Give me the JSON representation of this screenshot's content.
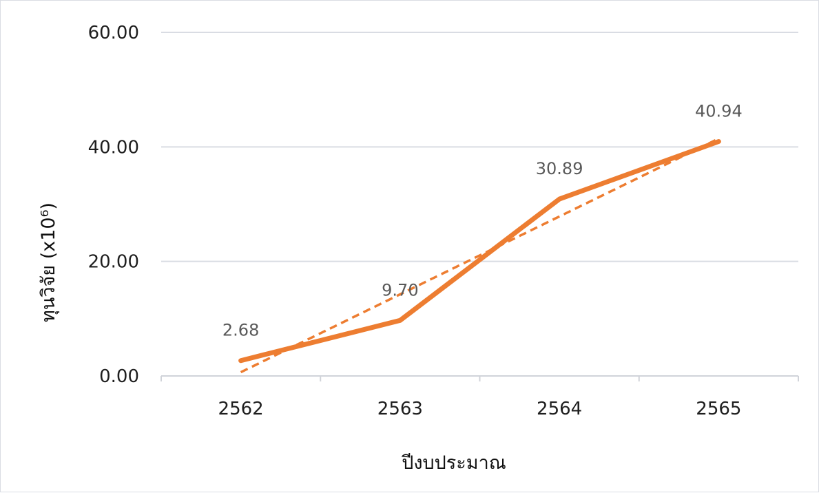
{
  "chart_data": {
    "type": "line",
    "categories": [
      "2562",
      "2563",
      "2564",
      "2565"
    ],
    "series": [
      {
        "values": [
          2.68,
          9.7,
          30.89,
          40.94
        ],
        "color": "#ED7D31",
        "data_labels": [
          "2.68",
          "9.70",
          "30.89",
          "40.94"
        ]
      }
    ],
    "trendline": {
      "type": "linear",
      "style": "dashed",
      "color": "#ED7D31"
    },
    "y_ticks": [
      "0.00",
      "20.00",
      "40.00",
      "60.00"
    ],
    "ylim": [
      0,
      60
    ],
    "xlabel": "ปีงบประมาณ",
    "ylabel": "ทุนวิจัย (x10⁶)",
    "grid": true,
    "legend": "none"
  }
}
